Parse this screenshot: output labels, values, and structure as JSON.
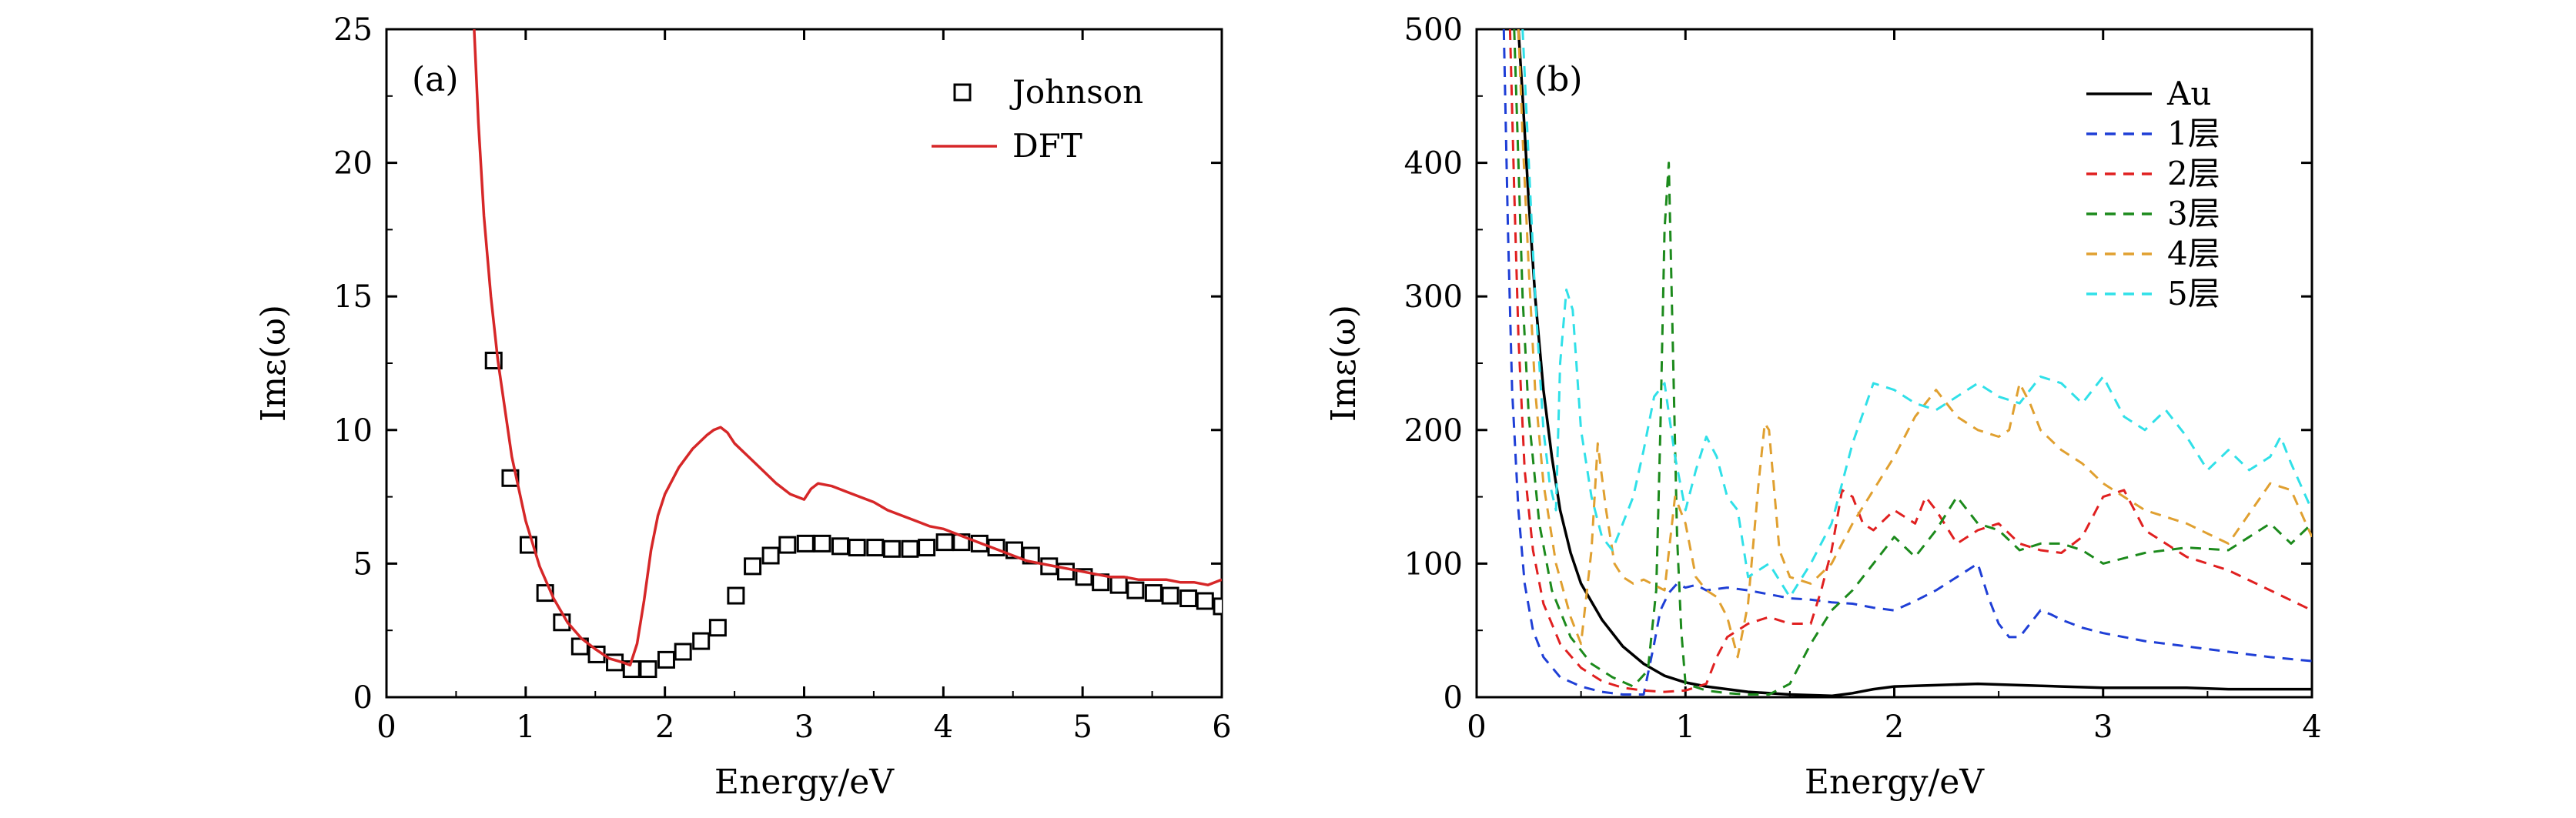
{
  "chart_data": [
    {
      "type": "line",
      "panel_label": "(a)",
      "xlabel": "Energy/eV",
      "ylabel": "Imε(ω)",
      "xlim": [
        0,
        6
      ],
      "ylim": [
        0,
        25
      ],
      "xticks": [
        0,
        1,
        2,
        3,
        4,
        5,
        6
      ],
      "yticks": [
        0,
        5,
        10,
        15,
        20,
        25
      ],
      "grid": false,
      "legend_position": "top-right",
      "series": [
        {
          "name": "Johnson",
          "kind": "scatter",
          "marker": "open-square",
          "color": "#000000",
          "x": [
            0.77,
            0.89,
            1.02,
            1.14,
            1.26,
            1.39,
            1.51,
            1.64,
            1.76,
            1.88,
            2.01,
            2.13,
            2.26,
            2.38,
            2.51,
            2.63,
            2.76,
            2.88,
            3.01,
            3.13,
            3.26,
            3.38,
            3.51,
            3.63,
            3.76,
            3.88,
            4.01,
            4.13,
            4.26,
            4.38,
            4.51,
            4.63,
            4.76,
            4.88,
            5.01,
            5.13,
            5.26,
            5.38,
            5.51,
            5.63,
            5.76,
            5.88,
            6.0
          ],
          "y": [
            12.6,
            8.2,
            5.7,
            3.9,
            2.8,
            1.9,
            1.6,
            1.3,
            1.05,
            1.05,
            1.4,
            1.7,
            2.1,
            2.6,
            3.8,
            4.9,
            5.3,
            5.7,
            5.75,
            5.75,
            5.65,
            5.6,
            5.6,
            5.55,
            5.55,
            5.6,
            5.8,
            5.8,
            5.75,
            5.6,
            5.5,
            5.3,
            4.9,
            4.7,
            4.5,
            4.3,
            4.2,
            4.0,
            3.9,
            3.8,
            3.7,
            3.6,
            3.4
          ]
        },
        {
          "name": "DFT",
          "kind": "line",
          "color": "#d62728",
          "x": [
            0.63,
            0.66,
            0.7,
            0.75,
            0.8,
            0.9,
            1.0,
            1.1,
            1.2,
            1.3,
            1.4,
            1.5,
            1.6,
            1.7,
            1.75,
            1.8,
            1.85,
            1.9,
            1.95,
            2.0,
            2.05,
            2.1,
            2.2,
            2.3,
            2.35,
            2.4,
            2.45,
            2.5,
            2.6,
            2.7,
            2.8,
            2.9,
            3.0,
            3.05,
            3.1,
            3.2,
            3.3,
            3.4,
            3.5,
            3.6,
            3.7,
            3.8,
            3.9,
            4.0,
            4.1,
            4.2,
            4.3,
            4.4,
            4.5,
            4.6,
            4.7,
            4.8,
            4.9,
            5.0,
            5.1,
            5.2,
            5.3,
            5.4,
            5.5,
            5.6,
            5.7,
            5.8,
            5.9,
            6.0
          ],
          "y": [
            25,
            21.5,
            18.0,
            15.0,
            12.6,
            9.0,
            6.6,
            4.9,
            3.7,
            2.8,
            2.2,
            1.8,
            1.45,
            1.3,
            1.2,
            2.0,
            3.6,
            5.5,
            6.8,
            7.6,
            8.1,
            8.6,
            9.3,
            9.8,
            10.0,
            10.1,
            9.9,
            9.5,
            9.0,
            8.5,
            8.0,
            7.6,
            7.4,
            7.8,
            8.0,
            7.9,
            7.7,
            7.5,
            7.3,
            7.0,
            6.8,
            6.6,
            6.4,
            6.3,
            6.1,
            5.9,
            5.7,
            5.5,
            5.3,
            5.1,
            5.0,
            4.9,
            4.8,
            4.7,
            4.6,
            4.5,
            4.5,
            4.4,
            4.4,
            4.4,
            4.3,
            4.3,
            4.2,
            4.4
          ]
        }
      ]
    },
    {
      "type": "line",
      "panel_label": "(b)",
      "xlabel": "Energy/eV",
      "ylabel": "Imε(ω)",
      "xlim": [
        0,
        4
      ],
      "ylim": [
        0,
        500
      ],
      "xticks": [
        0,
        1,
        2,
        3,
        4
      ],
      "yticks": [
        0,
        100,
        200,
        300,
        400,
        500
      ],
      "grid": false,
      "legend_position": "top-right",
      "series": [
        {
          "name": "Au",
          "dash": "solid",
          "color": "#000000",
          "x": [
            0.2,
            0.22,
            0.25,
            0.28,
            0.32,
            0.36,
            0.4,
            0.45,
            0.5,
            0.6,
            0.7,
            0.8,
            0.9,
            1.0,
            1.1,
            1.2,
            1.3,
            1.4,
            1.5,
            1.6,
            1.7,
            1.8,
            1.9,
            2.0,
            2.2,
            2.4,
            2.6,
            2.8,
            3.0,
            3.2,
            3.4,
            3.6,
            3.8,
            4.0
          ],
          "y": [
            500,
            450,
            370,
            300,
            230,
            180,
            140,
            108,
            85,
            58,
            38,
            25,
            16,
            11,
            8,
            6,
            4,
            3,
            2,
            1.5,
            1,
            3,
            6,
            8,
            9,
            10,
            9,
            8,
            7,
            7,
            7,
            6,
            6,
            6
          ]
        },
        {
          "name": "1层",
          "dash": "dashed",
          "color": "#1f3fd6",
          "x": [
            0.13,
            0.15,
            0.17,
            0.2,
            0.23,
            0.27,
            0.32,
            0.4,
            0.5,
            0.6,
            0.7,
            0.8,
            0.85,
            0.88,
            0.92,
            0.96,
            1.0,
            1.05,
            1.1,
            1.2,
            1.3,
            1.4,
            1.5,
            1.6,
            1.7,
            1.8,
            1.9,
            2.0,
            2.1,
            2.2,
            2.3,
            2.4,
            2.45,
            2.5,
            2.55,
            2.6,
            2.7,
            2.75,
            2.8,
            2.9,
            3.0,
            3.2,
            3.4,
            3.6,
            3.8,
            4.0
          ],
          "y": [
            500,
            350,
            230,
            140,
            85,
            50,
            30,
            15,
            8,
            4,
            2,
            2,
            40,
            65,
            78,
            85,
            82,
            84,
            80,
            82,
            80,
            77,
            74,
            73,
            71,
            70,
            67,
            65,
            72,
            80,
            90,
            100,
            75,
            55,
            45,
            45,
            65,
            62,
            58,
            52,
            48,
            42,
            38,
            34,
            30,
            27
          ]
        },
        {
          "name": "2层",
          "dash": "dashed",
          "color": "#e02020",
          "x": [
            0.16,
            0.18,
            0.2,
            0.23,
            0.27,
            0.32,
            0.4,
            0.5,
            0.6,
            0.7,
            0.8,
            0.9,
            1.0,
            1.1,
            1.15,
            1.2,
            1.3,
            1.4,
            1.5,
            1.6,
            1.65,
            1.7,
            1.75,
            1.8,
            1.85,
            1.9,
            2.0,
            2.1,
            2.15,
            2.2,
            2.3,
            2.4,
            2.5,
            2.6,
            2.7,
            2.8,
            2.9,
            3.0,
            3.1,
            3.2,
            3.4,
            3.6,
            3.8,
            4.0
          ],
          "y": [
            500,
            380,
            270,
            170,
            110,
            70,
            40,
            22,
            12,
            7,
            5,
            4,
            5,
            10,
            30,
            45,
            55,
            60,
            55,
            55,
            80,
            110,
            155,
            150,
            130,
            125,
            140,
            130,
            150,
            140,
            115,
            125,
            130,
            115,
            110,
            108,
            120,
            150,
            155,
            125,
            105,
            95,
            80,
            65
          ]
        },
        {
          "name": "3层",
          "dash": "dashed",
          "color": "#1c8a1c",
          "x": [
            0.18,
            0.2,
            0.22,
            0.25,
            0.3,
            0.36,
            0.45,
            0.55,
            0.65,
            0.75,
            0.82,
            0.86,
            0.88,
            0.9,
            0.92,
            0.94,
            0.96,
            0.98,
            1.0,
            1.1,
            1.2,
            1.3,
            1.4,
            1.5,
            1.6,
            1.7,
            1.8,
            1.9,
            2.0,
            2.1,
            2.2,
            2.3,
            2.4,
            2.5,
            2.6,
            2.7,
            2.8,
            2.9,
            3.0,
            3.2,
            3.4,
            3.6,
            3.8,
            3.9,
            4.0
          ],
          "y": [
            500,
            400,
            300,
            210,
            130,
            80,
            45,
            25,
            15,
            8,
            20,
            80,
            200,
            350,
            400,
            260,
            120,
            50,
            10,
            5,
            3,
            2,
            2,
            10,
            40,
            65,
            80,
            100,
            120,
            105,
            125,
            150,
            130,
            125,
            110,
            115,
            115,
            110,
            100,
            108,
            112,
            110,
            130,
            115,
            130
          ]
        },
        {
          "name": "4层",
          "dash": "dashed",
          "color": "#e0a030",
          "x": [
            0.2,
            0.22,
            0.25,
            0.28,
            0.32,
            0.38,
            0.45,
            0.5,
            0.55,
            0.58,
            0.62,
            0.66,
            0.7,
            0.75,
            0.8,
            0.9,
            0.95,
            1.0,
            1.05,
            1.1,
            1.15,
            1.2,
            1.25,
            1.3,
            1.35,
            1.38,
            1.4,
            1.45,
            1.5,
            1.6,
            1.7,
            1.8,
            1.9,
            2.0,
            2.1,
            2.2,
            2.3,
            2.4,
            2.5,
            2.55,
            2.6,
            2.65,
            2.7,
            2.8,
            2.9,
            3.0,
            3.1,
            3.2,
            3.4,
            3.6,
            3.8,
            3.9,
            4.0
          ],
          "y": [
            500,
            420,
            320,
            230,
            160,
            100,
            60,
            40,
            110,
            190,
            140,
            100,
            90,
            85,
            88,
            80,
            150,
            130,
            90,
            80,
            75,
            60,
            30,
            70,
            160,
            205,
            200,
            110,
            90,
            85,
            100,
            130,
            155,
            180,
            210,
            230,
            210,
            200,
            195,
            200,
            235,
            220,
            200,
            185,
            175,
            160,
            150,
            140,
            130,
            115,
            160,
            155,
            120
          ]
        },
        {
          "name": "5层",
          "dash": "dashed",
          "color": "#30e0e8",
          "x": [
            0.22,
            0.25,
            0.28,
            0.32,
            0.35,
            0.38,
            0.4,
            0.43,
            0.46,
            0.5,
            0.55,
            0.6,
            0.65,
            0.7,
            0.75,
            0.8,
            0.85,
            0.9,
            0.95,
            1.0,
            1.05,
            1.1,
            1.15,
            1.2,
            1.25,
            1.3,
            1.4,
            1.5,
            1.6,
            1.7,
            1.8,
            1.9,
            2.0,
            2.1,
            2.2,
            2.3,
            2.4,
            2.5,
            2.6,
            2.7,
            2.8,
            2.9,
            3.0,
            3.1,
            3.2,
            3.3,
            3.4,
            3.5,
            3.6,
            3.7,
            3.8,
            3.85,
            3.9,
            4.0
          ],
          "y": [
            500,
            400,
            300,
            200,
            160,
            140,
            250,
            305,
            290,
            200,
            150,
            120,
            110,
            130,
            150,
            185,
            225,
            235,
            180,
            140,
            170,
            195,
            180,
            150,
            140,
            90,
            100,
            75,
            100,
            130,
            190,
            235,
            230,
            220,
            215,
            225,
            235,
            225,
            220,
            240,
            235,
            220,
            240,
            210,
            200,
            215,
            195,
            170,
            185,
            170,
            180,
            195,
            175,
            140
          ]
        }
      ]
    }
  ]
}
